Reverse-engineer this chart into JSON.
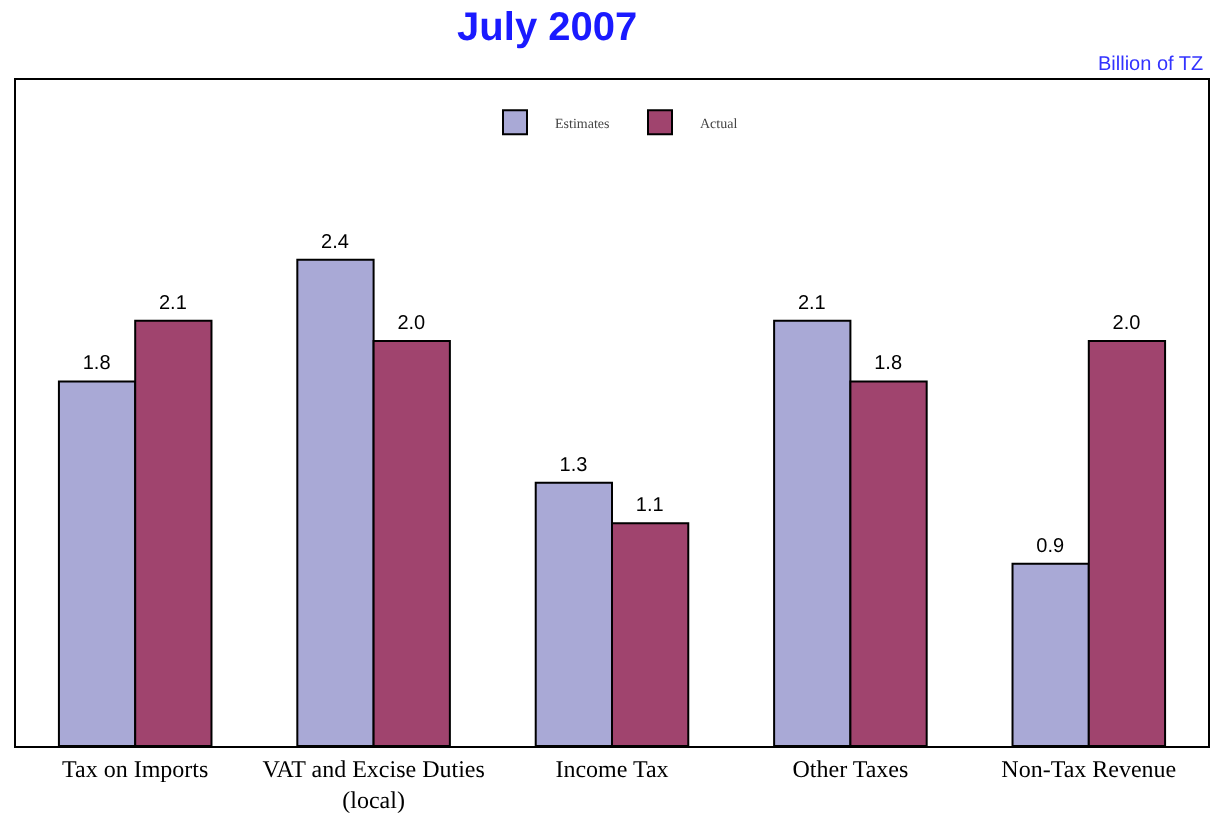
{
  "chart_data": {
    "type": "bar",
    "title": "July 2007",
    "annotations": [
      "Billion of TZ"
    ],
    "categories": [
      "Tax on Imports",
      "VAT and Excise Duties (local)",
      "Income Tax",
      "Other Taxes",
      "Non-Tax Revenue"
    ],
    "series": [
      {
        "name": "Estimates",
        "color": "#a9a9d6",
        "values": [
          1.8,
          2.4,
          1.3,
          2.1,
          0.9
        ],
        "value_labels": [
          "1.8",
          "2.4",
          "1.3",
          "2.1",
          "0.9"
        ]
      },
      {
        "name": "Actual",
        "color": "#a0446e",
        "values": [
          2.1,
          2.0,
          1.1,
          1.8,
          2.0
        ],
        "value_labels": [
          "2.1",
          "2.0",
          "1.1",
          "1.8",
          "2.0"
        ]
      }
    ],
    "legend": "top",
    "grid": false
  }
}
